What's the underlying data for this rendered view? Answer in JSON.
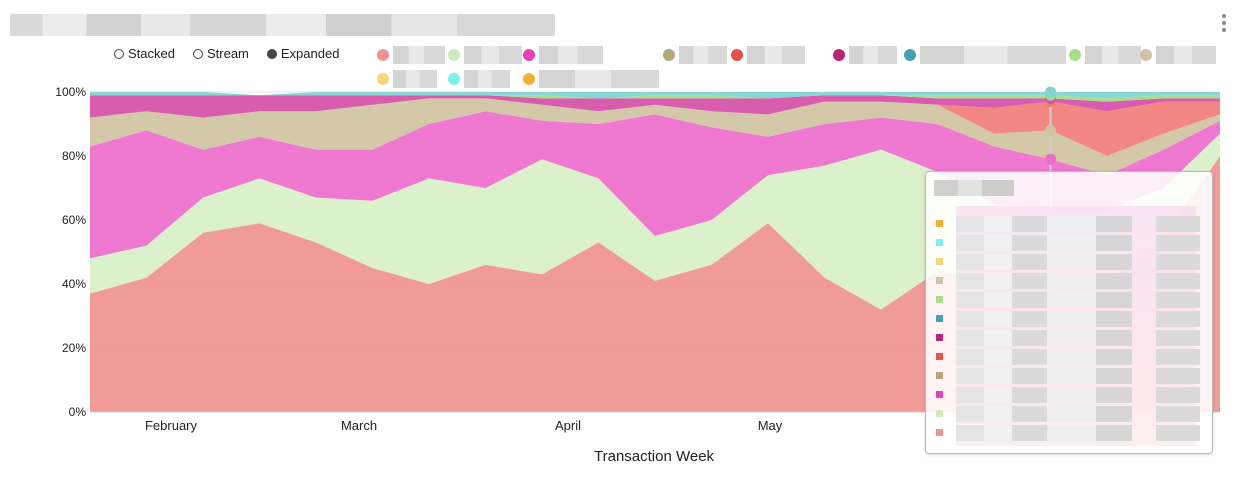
{
  "header": {
    "title": ""
  },
  "controls": [
    {
      "label": "Stacked",
      "selected": false
    },
    {
      "label": "Stream",
      "selected": false
    },
    {
      "label": "Expanded",
      "selected": true
    }
  ],
  "legend": [
    {
      "color": "#f0928f",
      "label": ""
    },
    {
      "color": "#cdeab8",
      "label": ""
    },
    {
      "color": "#e940b8",
      "label": ""
    },
    {
      "color": "#b7a77a",
      "label": ""
    },
    {
      "color": "#e8504a",
      "label": ""
    },
    {
      "color": "#b8257f",
      "label": ""
    },
    {
      "color": "#46a0b8",
      "label": ""
    },
    {
      "color": "#a8de8a",
      "label": ""
    },
    {
      "color": "#cfc4a2",
      "label": ""
    },
    {
      "color": "#f7d77a",
      "label": ""
    },
    {
      "color": "#78f2ea",
      "label": ""
    },
    {
      "color": "#f2b136",
      "label": ""
    }
  ],
  "chart_data": {
    "type": "area",
    "mode": "expanded",
    "xlabel": "Transaction Week",
    "ylabel": "",
    "ylim": [
      0,
      100
    ],
    "y_tick_labels": [
      "0%",
      "20%",
      "40%",
      "60%",
      "80%",
      "100%"
    ],
    "x_tick_labels": [
      "February",
      "March",
      "April",
      "May"
    ],
    "grid": true,
    "x_points": 21,
    "series": [
      {
        "color": "#f0928f",
        "values": [
          37,
          42,
          56,
          59,
          53,
          45,
          40,
          46,
          43,
          53,
          41,
          46,
          59,
          42,
          32,
          44,
          40,
          41,
          41,
          55,
          80
        ]
      },
      {
        "color": "#d8f0c8",
        "values": [
          11,
          10,
          11,
          14,
          14,
          21,
          33,
          24,
          36,
          20,
          14,
          14,
          15,
          35,
          50,
          31,
          25,
          22,
          22,
          15,
          7
        ]
      },
      {
        "color": "#ee6ccc",
        "values": [
          35,
          36,
          15,
          13,
          15,
          16,
          17,
          24,
          12,
          17,
          38,
          29,
          12,
          13,
          10,
          15,
          18,
          16,
          11,
          12,
          4
        ]
      },
      {
        "color": "#cfc4a2",
        "values": [
          9,
          6,
          10,
          8,
          12,
          14,
          8,
          4,
          5,
          4,
          3,
          5,
          7,
          7,
          5,
          6,
          4,
          9,
          6,
          5,
          2
        ]
      },
      {
        "color": "#f27d78",
        "values": [
          0,
          0,
          0,
          0,
          0,
          0,
          0,
          0,
          0,
          0,
          0,
          0,
          0,
          0,
          0,
          0,
          8,
          9,
          14,
          10,
          4
        ]
      },
      {
        "color": "#d64fa8",
        "values": [
          7,
          5,
          7,
          5,
          5,
          3,
          1,
          1,
          2,
          4,
          2,
          4,
          5,
          2,
          2,
          2,
          3,
          1,
          3,
          1,
          1
        ]
      },
      {
        "color": "#9fdb8a",
        "values": [
          0,
          0,
          0,
          0,
          0,
          0,
          0,
          0,
          1,
          0,
          1,
          1,
          0,
          0,
          0,
          1,
          1,
          1,
          1,
          1,
          1
        ]
      },
      {
        "color": "#7fd3d0",
        "values": [
          1,
          1,
          1,
          0,
          1,
          1,
          1,
          1,
          1,
          2,
          1,
          1,
          2,
          1,
          1,
          1,
          1,
          1,
          2,
          1,
          1
        ]
      }
    ]
  },
  "tooltip": {
    "title": "",
    "rows": [
      {
        "color": "#f2b136"
      },
      {
        "color": "#78f2ea"
      },
      {
        "color": "#f7d77a"
      },
      {
        "color": "#cfc4a2"
      },
      {
        "color": "#a8de8a"
      },
      {
        "color": "#46a0b8"
      },
      {
        "color": "#b8257f"
      },
      {
        "color": "#e8504a"
      },
      {
        "color": "#b7a77a"
      },
      {
        "color": "#e940b8"
      },
      {
        "color": "#cdeab8"
      },
      {
        "color": "#f0928f"
      }
    ]
  }
}
